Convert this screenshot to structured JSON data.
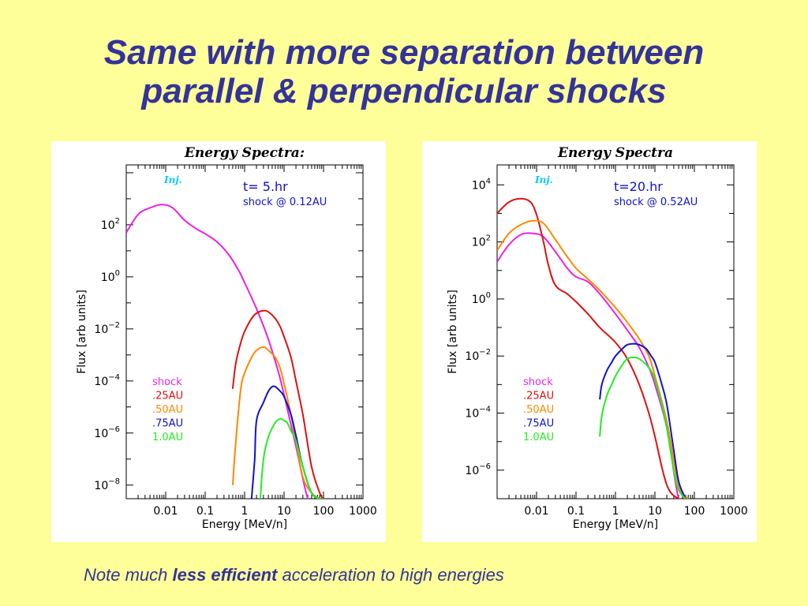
{
  "slide": {
    "title_line1": "Same with more separation between",
    "title_line2": "parallel & perpendicular shocks",
    "note_prefix": "Note much ",
    "note_bold": "less efficient",
    "note_suffix": " acceleration to high energies"
  },
  "chart_data": [
    {
      "type": "line",
      "title": "Energy Spectra:",
      "xlabel": "Energy [MeV/n]",
      "ylabel": "Flux [arb units]",
      "xscale": "log",
      "yscale": "log",
      "xlim": [
        0.001,
        1000
      ],
      "ylim": [
        3e-09,
        20000.0
      ],
      "x_ticks": [
        "0.01",
        "0.1",
        "1",
        "10",
        "100",
        "1000"
      ],
      "y_ticks": [
        {
          "value": 100,
          "base": "10",
          "exp": "2"
        },
        {
          "value": 1,
          "base": "10",
          "exp": "0"
        },
        {
          "value": 0.01,
          "base": "10",
          "exp": "−2"
        },
        {
          "value": 0.0001,
          "base": "10",
          "exp": "−4"
        },
        {
          "value": 1e-06,
          "base": "10",
          "exp": "−6"
        },
        {
          "value": 1e-08,
          "base": "10",
          "exp": "−8"
        }
      ],
      "annotations": {
        "inj": "Inj.",
        "time": "t= 5.hr",
        "shock_pos": "shock @ 0.12AU"
      },
      "legend_position": "lower-left",
      "series": [
        {
          "name": "shock",
          "color": "#ee22dd",
          "x": [
            0.001,
            0.002,
            0.004,
            0.008,
            0.015,
            0.03,
            0.06,
            0.1,
            0.2,
            0.4,
            0.7,
            1,
            2,
            4,
            7,
            10,
            20,
            40,
            70,
            100
          ],
          "y": [
            50,
            250,
            450,
            600,
            450,
            150,
            70,
            45,
            22,
            7,
            1.8,
            0.6,
            0.06,
            0.004,
            0.00025,
            3e-05,
            3e-07,
            3e-09,
            1e-09,
            1e-09
          ]
        },
        {
          "name": ".25AU",
          "color": "#dd1111",
          "x": [
            0.5,
            0.6,
            0.8,
            1,
            1.5,
            2,
            3,
            4,
            6,
            8,
            10,
            15,
            20,
            30,
            50,
            80,
            100
          ],
          "y": [
            5e-05,
            0.0005,
            0.003,
            0.008,
            0.025,
            0.04,
            0.05,
            0.045,
            0.025,
            0.012,
            0.005,
            0.0008,
            0.0001,
            5e-06,
            5e-08,
            5e-09,
            3e-09
          ]
        },
        {
          "name": ".50AU",
          "color": "#ff8800",
          "x": [
            0.5,
            0.6,
            0.8,
            1,
            1.5,
            2,
            3,
            4,
            6,
            8,
            10,
            15,
            20,
            30,
            50,
            80,
            100
          ],
          "y": [
            1e-08,
            5e-07,
            5e-05,
            0.0002,
            0.0008,
            0.0015,
            0.002,
            0.0015,
            0.0008,
            0.0003,
            8e-05,
            5e-06,
            5e-07,
            2e-08,
            5e-09,
            3e-09,
            3e-09
          ]
        },
        {
          "name": ".75AU",
          "color": "#1111cc",
          "x": [
            1.5,
            1.8,
            2,
            3,
            4,
            5,
            6,
            8,
            10,
            15,
            20,
            30,
            50,
            80,
            100
          ],
          "y": [
            3e-09,
            1e-07,
            3e-06,
            1.5e-05,
            4e-05,
            6e-05,
            6e-05,
            4e-05,
            2.5e-05,
            5e-06,
            8e-07,
            5e-08,
            5e-09,
            3e-09,
            3e-09
          ]
        },
        {
          "name": "1.0AU",
          "color": "#22ee22",
          "x": [
            2.5,
            3,
            4,
            6,
            8,
            10,
            12,
            15,
            20,
            30,
            50,
            80,
            100
          ],
          "y": [
            3e-09,
            1e-07,
            7e-07,
            2.5e-06,
            3.5e-06,
            3e-06,
            2.5e-06,
            1.2e-06,
            5e-07,
            5e-08,
            5e-09,
            3e-09,
            3e-09
          ]
        }
      ]
    },
    {
      "type": "line",
      "title": "Energy Spectra",
      "xlabel": "Energy [MeV/n]",
      "ylabel": "Flux [arb units]",
      "xscale": "log",
      "yscale": "log",
      "xlim": [
        0.001,
        1000
      ],
      "ylim": [
        1e-07,
        50000.0
      ],
      "x_ticks": [
        "0.01",
        "0.1",
        "1",
        "10",
        "100",
        "1000"
      ],
      "y_ticks": [
        {
          "value": 10000,
          "base": "10",
          "exp": "4"
        },
        {
          "value": 100,
          "base": "10",
          "exp": "2"
        },
        {
          "value": 1,
          "base": "10",
          "exp": "0"
        },
        {
          "value": 0.01,
          "base": "10",
          "exp": "−2"
        },
        {
          "value": 0.0001,
          "base": "10",
          "exp": "−4"
        },
        {
          "value": 1e-06,
          "base": "10",
          "exp": "−6"
        }
      ],
      "annotations": {
        "inj": "Inj.",
        "time": "t=20.hr",
        "shock_pos": "shock @ 0.52AU"
      },
      "legend_position": "lower-left",
      "series": [
        {
          "name": "shock",
          "color": "#ee22dd",
          "x": [
            0.001,
            0.002,
            0.004,
            0.008,
            0.015,
            0.03,
            0.06,
            0.1,
            0.2,
            0.4,
            1,
            2,
            4,
            7,
            10,
            20,
            40,
            70
          ],
          "y": [
            20,
            80,
            180,
            200,
            150,
            45,
            12,
            6,
            4,
            1.5,
            0.3,
            0.08,
            0.02,
            0.004,
            0.001,
            3e-05,
            1e-07,
            1e-07
          ]
        },
        {
          "name": ".25AU",
          "color": "#dd1111",
          "x": [
            0.001,
            0.002,
            0.004,
            0.007,
            0.01,
            0.015,
            0.02,
            0.03,
            0.06,
            0.1,
            0.2,
            0.4,
            1,
            2,
            4,
            7,
            10,
            20,
            40,
            70
          ],
          "y": [
            1000,
            2500,
            3300,
            2500,
            900,
            100,
            15,
            3,
            1.5,
            0.8,
            0.3,
            0.1,
            0.03,
            0.008,
            0.001,
            0.0001,
            1.5e-05,
            3e-07,
            1e-07,
            1e-07
          ]
        },
        {
          "name": ".50AU",
          "color": "#ff8800",
          "x": [
            0.001,
            0.002,
            0.004,
            0.008,
            0.015,
            0.03,
            0.06,
            0.1,
            0.2,
            0.4,
            1,
            2,
            4,
            7,
            10,
            20,
            40,
            70
          ],
          "y": [
            50,
            200,
            400,
            550,
            450,
            120,
            30,
            12,
            5,
            2,
            0.5,
            0.15,
            0.04,
            0.01,
            0.002,
            5e-05,
            3e-07,
            1e-07
          ]
        },
        {
          "name": ".75AU",
          "color": "#1111cc",
          "x": [
            0.4,
            0.45,
            0.6,
            0.8,
            1,
            1.5,
            2,
            3,
            4,
            6,
            8,
            10,
            15,
            20,
            30,
            40,
            60
          ],
          "y": [
            0.0003,
            0.001,
            0.003,
            0.006,
            0.01,
            0.018,
            0.025,
            0.027,
            0.025,
            0.018,
            0.01,
            0.006,
            0.001,
            0.0002,
            5e-06,
            4e-07,
            1e-07
          ]
        },
        {
          "name": "1.0AU",
          "color": "#22ee22",
          "x": [
            0.4,
            0.45,
            0.6,
            0.8,
            1,
            1.5,
            2,
            3,
            4,
            6,
            8,
            10,
            15,
            20,
            30,
            40,
            60
          ],
          "y": [
            1.5e-05,
            8e-05,
            0.0004,
            0.001,
            0.002,
            0.005,
            0.008,
            0.009,
            0.008,
            0.005,
            0.003,
            0.0015,
            0.0002,
            3e-05,
            1e-06,
            2e-07,
            1e-07
          ]
        }
      ]
    }
  ]
}
